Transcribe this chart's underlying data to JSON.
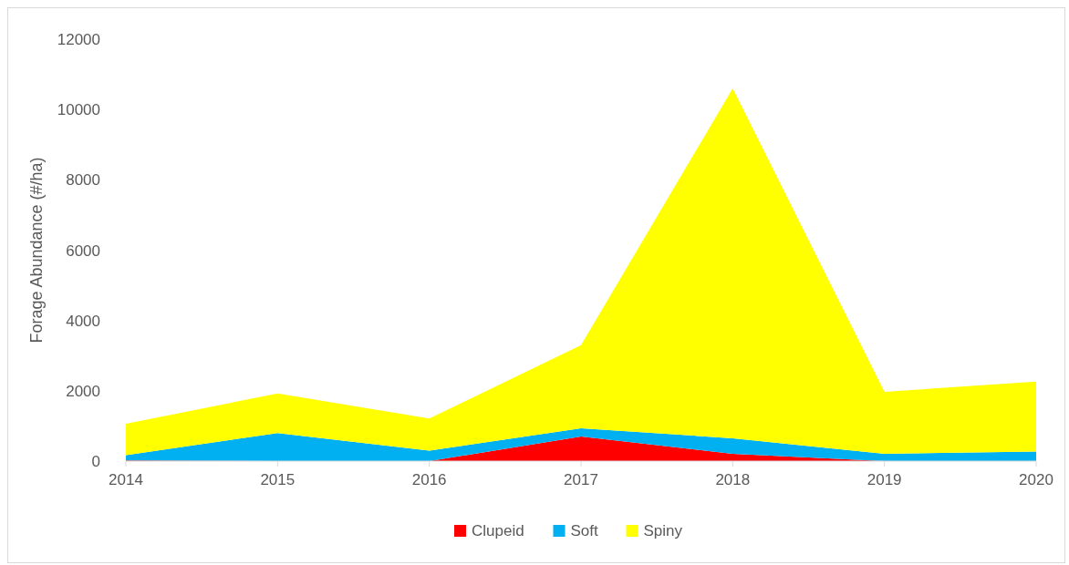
{
  "chart_data": {
    "type": "area",
    "stacked": true,
    "ylabel": "Forage Abundance (#/ha)",
    "categories": [
      "2014",
      "2015",
      "2016",
      "2017",
      "2018",
      "2019",
      "2020"
    ],
    "series": [
      {
        "name": "Clupeid",
        "color": "#ff0000",
        "values": [
          20,
          0,
          0,
          700,
          210,
          0,
          0
        ]
      },
      {
        "name": "Soft",
        "color": "#00b0f0",
        "values": [
          150,
          795,
          300,
          230,
          440,
          210,
          270
        ]
      },
      {
        "name": "Spiny",
        "color": "#ffff00",
        "values": [
          890,
          1130,
          910,
          2370,
          9950,
          1760,
          1990
        ]
      }
    ],
    "ylim": [
      0,
      12000
    ],
    "yticks": [
      0,
      2000,
      4000,
      6000,
      8000,
      10000,
      12000
    ],
    "grid": false,
    "legend": "bottom"
  }
}
